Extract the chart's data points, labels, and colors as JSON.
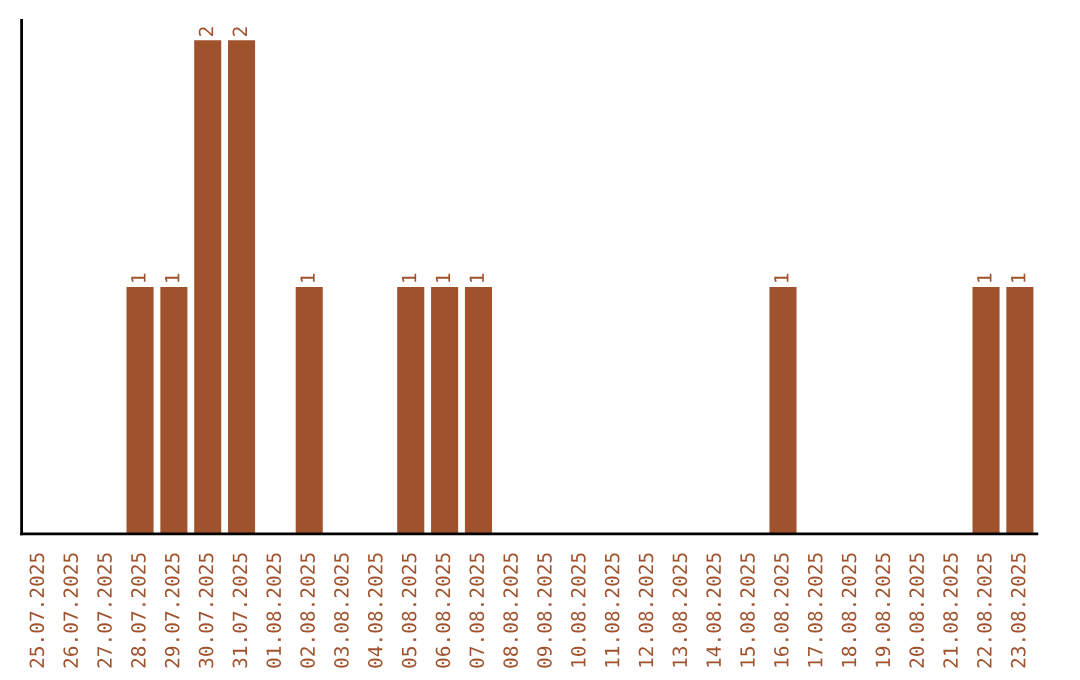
{
  "chart_data": {
    "type": "bar",
    "categories": [
      "25.07.2025",
      "26.07.2025",
      "27.07.2025",
      "28.07.2025",
      "29.07.2025",
      "30.07.2025",
      "31.07.2025",
      "01.08.2025",
      "02.08.2025",
      "03.08.2025",
      "04.08.2025",
      "05.08.2025",
      "06.08.2025",
      "07.08.2025",
      "08.08.2025",
      "09.08.2025",
      "10.08.2025",
      "11.08.2025",
      "12.08.2025",
      "13.08.2025",
      "14.08.2025",
      "15.08.2025",
      "16.08.2025",
      "17.08.2025",
      "18.08.2025",
      "19.08.2025",
      "20.08.2025",
      "21.08.2025",
      "22.08.2025",
      "23.08.2025"
    ],
    "values": [
      null,
      null,
      null,
      1,
      1,
      2,
      2,
      null,
      1,
      null,
      null,
      1,
      1,
      1,
      null,
      null,
      null,
      null,
      null,
      null,
      null,
      null,
      1,
      null,
      null,
      null,
      null,
      null,
      1,
      1
    ],
    "color": "#a0522d",
    "ylim": [
      0,
      2.08
    ],
    "data_labels": true,
    "tick_labels": "x",
    "grid": false,
    "legend": false
  }
}
